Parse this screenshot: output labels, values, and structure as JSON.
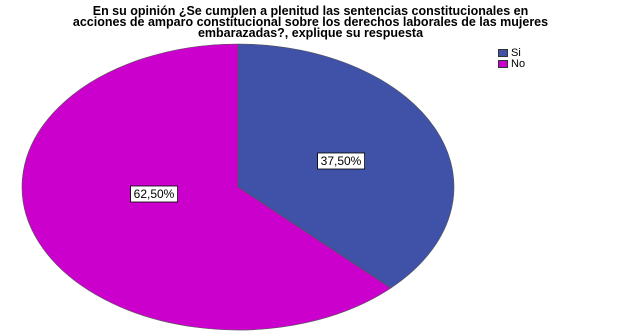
{
  "chart_data": {
    "type": "pie",
    "title_lines": [
      "En su opinión ¿Se cumplen a plenitud las sentencias constitucionales en",
      "acciones de amparo constitucional sobre los derechos laborales de las mujeres",
      "embarazadas?, explique su respuesta"
    ],
    "categories": [
      "Si",
      "No"
    ],
    "values": [
      37.5,
      62.5
    ],
    "data_labels": [
      "37,50%",
      "62,50%"
    ],
    "colors": [
      "#3f52a8",
      "#cc00cc"
    ],
    "legend_position": "top-right"
  }
}
